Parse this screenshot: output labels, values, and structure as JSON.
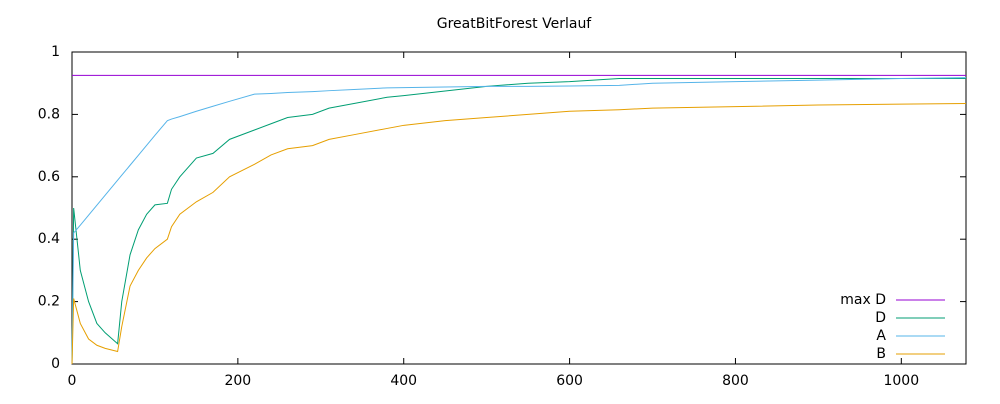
{
  "chart_data": {
    "type": "line",
    "title": "GreatBitForest Verlauf",
    "x": [
      0,
      2,
      10,
      20,
      30,
      40,
      55,
      60,
      70,
      80,
      90,
      100,
      115,
      120,
      130,
      150,
      170,
      190,
      220,
      240,
      260,
      290,
      310,
      340,
      380,
      400,
      450,
      500,
      550,
      600,
      660,
      700,
      800,
      900,
      1000,
      1078
    ],
    "series": [
      {
        "name": "max D",
        "color": "#9400d3",
        "values": [
          0.925,
          0.925,
          0.925,
          0.925,
          0.925,
          0.925,
          0.925,
          0.925,
          0.925,
          0.925,
          0.925,
          0.925,
          0.925,
          0.925,
          0.925,
          0.925,
          0.925,
          0.925,
          0.925,
          0.925,
          0.925,
          0.925,
          0.925,
          0.925,
          0.925,
          0.925,
          0.925,
          0.925,
          0.925,
          0.925,
          0.925,
          0.925,
          0.925,
          0.925,
          0.925,
          0.925
        ]
      },
      {
        "name": "D",
        "color": "#009e73",
        "values": [
          0,
          0.5,
          0.3,
          0.2,
          0.13,
          0.1,
          0.065,
          0.2,
          0.35,
          0.43,
          0.48,
          0.51,
          0.515,
          0.56,
          0.6,
          0.66,
          0.675,
          0.72,
          0.75,
          0.77,
          0.79,
          0.8,
          0.82,
          0.835,
          0.855,
          0.86,
          0.875,
          0.89,
          0.9,
          0.905,
          0.915,
          0.915,
          0.915,
          0.915,
          0.915,
          0.915
        ]
      },
      {
        "name": "A",
        "color": "#56b4e9",
        "values": [
          0,
          0.42,
          0.445,
          0.477,
          0.509,
          0.541,
          0.589,
          0.605,
          0.637,
          0.669,
          0.701,
          0.733,
          0.78,
          0.785,
          0.793,
          0.81,
          0.826,
          0.842,
          0.865,
          0.867,
          0.87,
          0.873,
          0.876,
          0.88,
          0.885,
          0.886,
          0.888,
          0.89,
          0.89,
          0.891,
          0.893,
          0.9,
          0.905,
          0.91,
          0.915,
          0.918
        ]
      },
      {
        "name": "B",
        "color": "#e69f00",
        "values": [
          0,
          0.21,
          0.13,
          0.08,
          0.06,
          0.05,
          0.04,
          0.12,
          0.25,
          0.3,
          0.34,
          0.37,
          0.4,
          0.44,
          0.48,
          0.52,
          0.55,
          0.6,
          0.64,
          0.67,
          0.69,
          0.7,
          0.72,
          0.735,
          0.755,
          0.765,
          0.78,
          0.79,
          0.8,
          0.81,
          0.815,
          0.82,
          0.825,
          0.83,
          0.833,
          0.835
        ]
      }
    ],
    "xlim": [
      0,
      1078
    ],
    "ylim": [
      0,
      1
    ],
    "xticks": [
      0,
      200,
      400,
      600,
      800,
      1000
    ],
    "yticks": [
      0,
      0.2,
      0.4,
      0.6,
      0.8,
      1
    ],
    "legend": "lower right"
  }
}
